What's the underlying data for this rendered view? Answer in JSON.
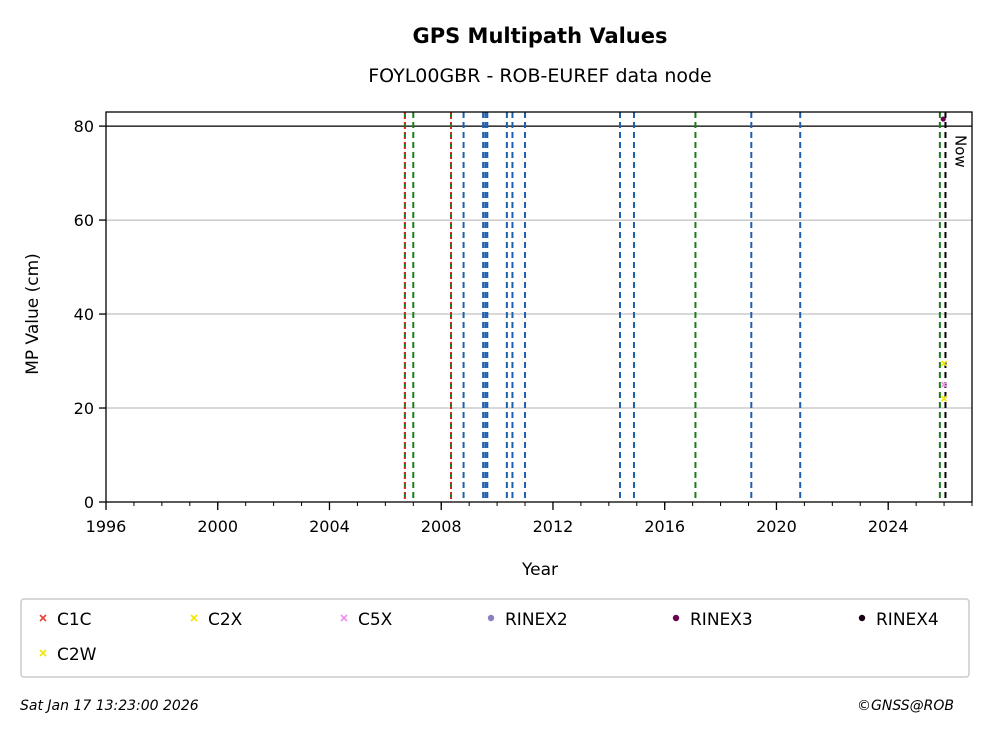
{
  "chart_data": {
    "type": "scatter",
    "title": "GPS Multipath Values",
    "subtitle": "FOYL00GBR - ROB-EUREF data node",
    "xlabel": "Year",
    "ylabel": "MP Value (cm)",
    "xlim": [
      1996,
      2027
    ],
    "ylim": [
      0,
      83
    ],
    "x_ticks": [
      "1996",
      "2000",
      "2004",
      "2008",
      "2012",
      "2016",
      "2020",
      "2024"
    ],
    "y_ticks": [
      "0",
      "20",
      "40",
      "60",
      "80"
    ],
    "grid": "y",
    "threshold_line": 80,
    "now_label": "Now",
    "now_year": 2026.05,
    "event_lines": [
      {
        "year": 2006.7,
        "color": "#1a7f1a",
        "style": "dashed"
      },
      {
        "year": 2006.7,
        "color": "#e02020",
        "style": "dotted"
      },
      {
        "year": 2007.0,
        "color": "#1a7f1a",
        "style": "dashed"
      },
      {
        "year": 2008.35,
        "color": "#1a7f1a",
        "style": "dashed"
      },
      {
        "year": 2008.35,
        "color": "#e02020",
        "style": "dotted"
      },
      {
        "year": 2008.8,
        "color": "#1f5fb0",
        "style": "dashed"
      },
      {
        "year": 2009.5,
        "color": "#1f5fb0",
        "style": "dashed"
      },
      {
        "year": 2009.58,
        "color": "#1f5fb0",
        "style": "dashed"
      },
      {
        "year": 2009.65,
        "color": "#1f5fb0",
        "style": "dashed"
      },
      {
        "year": 2010.35,
        "color": "#1f5fb0",
        "style": "dashed"
      },
      {
        "year": 2010.55,
        "color": "#1f5fb0",
        "style": "dashed"
      },
      {
        "year": 2011.0,
        "color": "#1f5fb0",
        "style": "dashed"
      },
      {
        "year": 2014.4,
        "color": "#1f5fb0",
        "style": "dashed"
      },
      {
        "year": 2014.9,
        "color": "#1f5fb0",
        "style": "dashed"
      },
      {
        "year": 2017.1,
        "color": "#1a7f1a",
        "style": "dashed"
      },
      {
        "year": 2019.1,
        "color": "#1f5fb0",
        "style": "dashed"
      },
      {
        "year": 2020.85,
        "color": "#1f5fb0",
        "style": "dashed"
      },
      {
        "year": 2025.85,
        "color": "#1a7f1a",
        "style": "dashed"
      }
    ],
    "series": [
      {
        "name": "C1C",
        "marker": "x",
        "color": "#e8403a",
        "points": []
      },
      {
        "name": "C2X",
        "marker": "x",
        "color": "#f2e600",
        "points": [
          {
            "x": 2026.0,
            "y": 29.5
          }
        ]
      },
      {
        "name": "C5X",
        "marker": "x",
        "color": "#f08cf0",
        "points": [
          {
            "x": 2026.0,
            "y": 25.0
          }
        ]
      },
      {
        "name": "RINEX2",
        "marker": "dot",
        "color": "#8a7fc0",
        "points": []
      },
      {
        "name": "RINEX3",
        "marker": "dot",
        "color": "#6a0050",
        "points": [
          {
            "x": 2025.97,
            "y": 81.5
          }
        ]
      },
      {
        "name": "RINEX4",
        "marker": "dot",
        "color": "#1a0014",
        "points": []
      },
      {
        "name": "C2W",
        "marker": "x",
        "color": "#f2e600",
        "points": [
          {
            "x": 2026.0,
            "y": 22.0
          }
        ]
      }
    ],
    "legend_position": "bottom"
  },
  "footer": {
    "timestamp": "Sat Jan 17 13:23:00 2026",
    "credit": "©GNSS@ROB"
  }
}
